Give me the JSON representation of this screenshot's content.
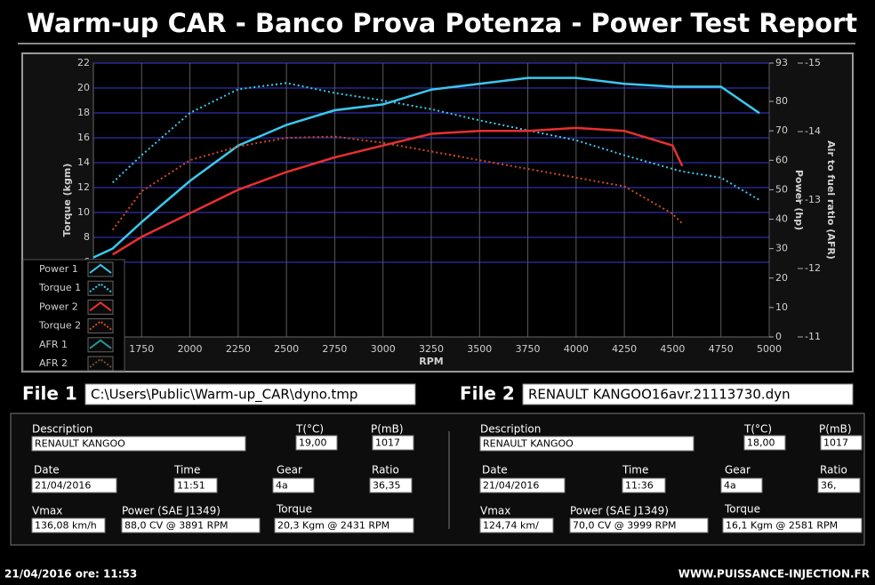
{
  "header": {
    "title": "Warm-up CAR  - Banco Prova Potenza -  Power Test Report"
  },
  "chart_data": {
    "type": "line",
    "xlabel": "RPM",
    "ylabel": "Torque (kgm)",
    "y2label": "Power (hp)",
    "y3label": "Air to fuel ratio (AFR)",
    "x": [
      1500,
      1600,
      1750,
      2000,
      2250,
      2500,
      2750,
      3000,
      3250,
      3500,
      3750,
      4000,
      4250,
      4500,
      4550,
      4750,
      4950
    ],
    "xlim": [
      1500,
      5000
    ],
    "xticks": [
      1750,
      2000,
      2250,
      2500,
      2750,
      3000,
      3250,
      3500,
      3750,
      4000,
      4250,
      4500,
      4750,
      5000
    ],
    "ylim": [
      0,
      22
    ],
    "yticks": [
      6,
      8,
      10,
      12,
      14,
      16,
      18,
      20,
      22
    ],
    "y2lim": [
      0,
      93
    ],
    "y2ticks": [
      0,
      10,
      20,
      30,
      40,
      50,
      60,
      70,
      80,
      93
    ],
    "y3lim": [
      -11,
      -15
    ],
    "y3ticks": [
      -11,
      -12,
      -13,
      -14,
      -15
    ],
    "grid": true,
    "legend": "bottom-left",
    "series": [
      {
        "name": "Power 1",
        "color": "#3cc8f0",
        "style": "solid",
        "axis": "y2",
        "values": [
          27,
          30,
          39,
          53,
          65,
          72,
          77,
          79,
          84,
          86,
          88,
          88,
          86,
          85,
          85,
          85,
          76
        ]
      },
      {
        "name": "Torque 1",
        "color": "#3cc8f0",
        "style": "dotted",
        "axis": "y",
        "values": [
          null,
          12.4,
          14.6,
          18.0,
          19.9,
          20.4,
          19.6,
          19.0,
          18.3,
          17.4,
          16.6,
          15.8,
          14.6,
          13.5,
          13.3,
          12.8,
          11.0
        ]
      },
      {
        "name": "Power 2",
        "color": "#e83030",
        "style": "solid",
        "axis": "y2",
        "values": [
          null,
          28,
          34,
          42,
          50,
          56,
          61,
          65,
          69,
          70,
          70,
          71,
          70,
          65,
          58,
          null,
          null
        ]
      },
      {
        "name": "Torque 2",
        "color": "#d04a20",
        "style": "dotted",
        "axis": "y",
        "values": [
          null,
          8.6,
          11.7,
          14.2,
          15.3,
          16.0,
          16.1,
          15.6,
          14.9,
          14.2,
          13.5,
          12.8,
          12.1,
          9.9,
          9.1,
          null,
          null
        ]
      },
      {
        "name": "AFR 1",
        "color": "#2a9090",
        "style": "solid",
        "axis": "y3",
        "values": [
          null,
          null,
          null,
          null,
          null,
          null,
          null,
          null,
          null,
          null,
          null,
          null,
          null,
          null,
          null,
          null,
          null
        ]
      },
      {
        "name": "AFR 2",
        "color": "#7a5030",
        "style": "dotted",
        "axis": "y3",
        "values": [
          null,
          null,
          null,
          null,
          null,
          null,
          null,
          null,
          null,
          null,
          null,
          null,
          null,
          null,
          null,
          null,
          null
        ]
      }
    ]
  },
  "files": [
    {
      "label": "File 1",
      "path": "C:\\Users\\Public\\Warm-up_CAR\\dyno.tmp",
      "fields": [
        {
          "label": "Description",
          "value": "RENAULT KANGOO"
        },
        {
          "label": "T(°C)",
          "value": "19,00"
        },
        {
          "label": "P(mB)",
          "value": "1017"
        },
        {
          "label": "Date",
          "value": "21/04/2016"
        },
        {
          "label": "Time",
          "value": "11:51"
        },
        {
          "label": "Gear",
          "value": "4a"
        },
        {
          "label": "Ratio",
          "value": "36,35"
        },
        {
          "label": "Vmax",
          "value": "136,08 km/h"
        },
        {
          "label": "Power (SAE J1349)",
          "value": "88,0 CV  @ 3891  RPM"
        },
        {
          "label": "Torque",
          "value": "20,3 Kgm  @ 2431  RPM"
        }
      ]
    },
    {
      "label": "File 2",
      "path": "RENAULT KANGOO16avr.21113730.dyn",
      "fields": [
        {
          "label": "Description",
          "value": "RENAULT KANGOO"
        },
        {
          "label": "T(°C)",
          "value": "18,00"
        },
        {
          "label": "P(mB)",
          "value": "1017"
        },
        {
          "label": "Date",
          "value": "21/04/2016"
        },
        {
          "label": "Time",
          "value": "11:36"
        },
        {
          "label": "Gear",
          "value": "4a"
        },
        {
          "label": "Ratio",
          "value": "36,"
        },
        {
          "label": "Vmax",
          "value": "124,74 km/"
        },
        {
          "label": "Power (SAE J1349)",
          "value": "70,0 CV  @ 3999  RPM"
        },
        {
          "label": "Torque",
          "value": "16,1 Kgm  @ 2581  RPM"
        }
      ]
    }
  ],
  "footer": {
    "datetime": "21/04/2016  ore: 11:53",
    "url": "WWW.PUISSANCE-INJECTION.FR"
  }
}
